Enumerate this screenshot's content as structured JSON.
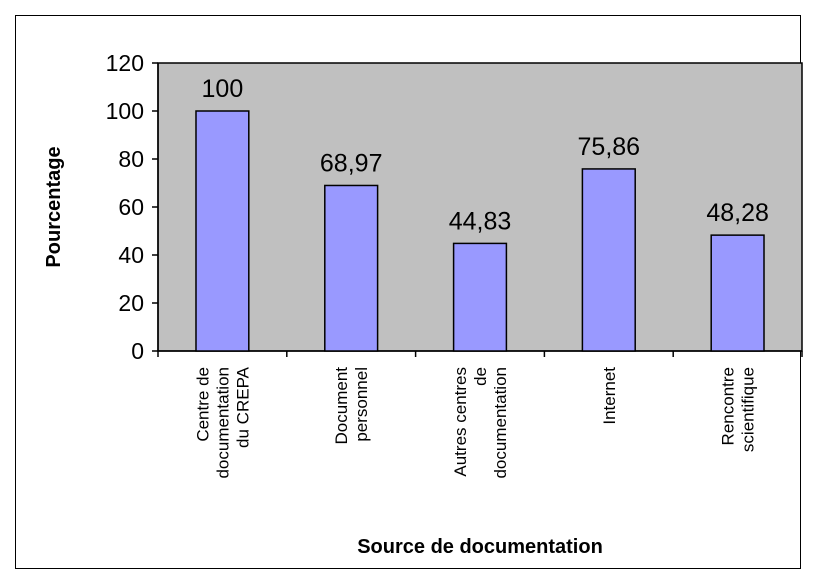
{
  "chart_data": {
    "type": "bar",
    "title": "",
    "xlabel": "Source de documentation",
    "ylabel": "Pourcentage",
    "ylim": [
      0,
      120
    ],
    "yticks": [
      0,
      20,
      40,
      60,
      80,
      100,
      120
    ],
    "grid": false,
    "legend": "none",
    "categories": [
      [
        "Centre de",
        "documentation",
        "du CREPA"
      ],
      [
        "Document",
        "personnel"
      ],
      [
        "Autres centres",
        "de",
        "documentation"
      ],
      [
        "Internet"
      ],
      [
        "Rencontre",
        "scientifique"
      ]
    ],
    "values": [
      100,
      68.97,
      44.83,
      75.86,
      48.28
    ],
    "value_labels": [
      "100",
      "68,97",
      "44,83",
      "75,86",
      "48,28"
    ],
    "colors": {
      "bar_fill": "#9999ff",
      "bar_stroke": "#000000",
      "plot_background": "#c0c0c0"
    }
  }
}
